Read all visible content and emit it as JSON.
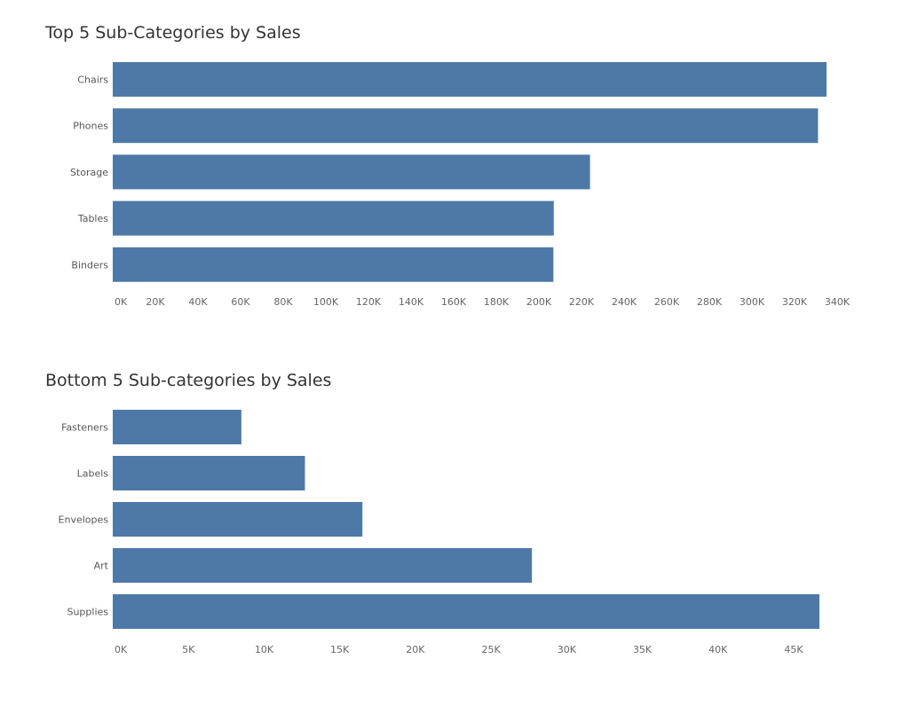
{
  "colors": {
    "bar": "#4e79a7",
    "background": "#ffffff"
  },
  "chart_data": [
    {
      "type": "bar",
      "orientation": "horizontal",
      "title": "Top 5 Sub-Categories by Sales",
      "categories": [
        "Chairs",
        "Phones",
        "Storage",
        "Tables",
        "Binders"
      ],
      "values": [
        335000,
        331000,
        224000,
        207000,
        206800
      ],
      "xlim": [
        0,
        340000
      ],
      "xticks": [
        0,
        20000,
        40000,
        60000,
        80000,
        100000,
        120000,
        140000,
        160000,
        180000,
        200000,
        220000,
        240000,
        260000,
        280000,
        300000,
        320000,
        340000
      ],
      "xtick_labels": [
        "0K",
        "20K",
        "40K",
        "60K",
        "80K",
        "100K",
        "120K",
        "140K",
        "160K",
        "180K",
        "200K",
        "220K",
        "240K",
        "260K",
        "280K",
        "300K",
        "320K",
        "340K"
      ],
      "grid": false,
      "legend": false
    },
    {
      "type": "bar",
      "orientation": "horizontal",
      "title": "Bottom 5 Sub-categories by Sales",
      "categories": [
        "Fasteners",
        "Labels",
        "Envelopes",
        "Art",
        "Supplies"
      ],
      "values": [
        8500,
        12700,
        16500,
        27700,
        46700
      ],
      "xlim": [
        0,
        45000
      ],
      "xticks": [
        0,
        5000,
        10000,
        15000,
        20000,
        25000,
        30000,
        35000,
        40000,
        45000
      ],
      "xtick_labels": [
        "0K",
        "5K",
        "10K",
        "15K",
        "20K",
        "25K",
        "30K",
        "35K",
        "40K",
        "45K"
      ],
      "grid": false,
      "legend": false
    }
  ]
}
